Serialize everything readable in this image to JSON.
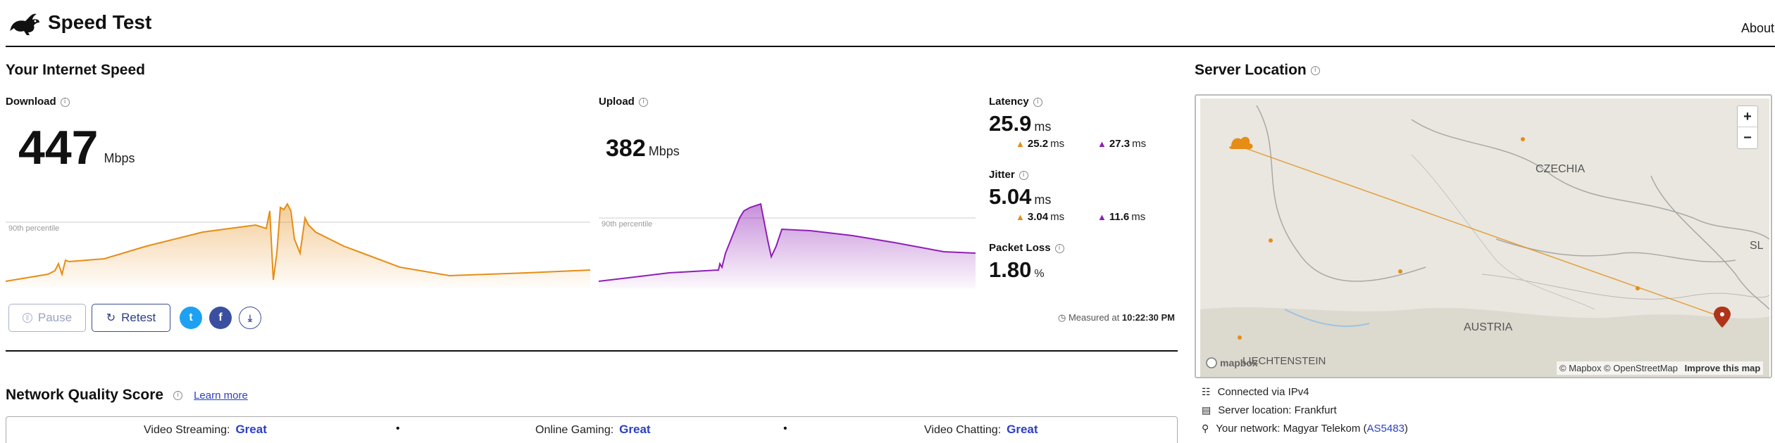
{
  "header": {
    "title": "Speed Test",
    "about": "About"
  },
  "speed": {
    "title": "Your Internet Speed",
    "download": {
      "label": "Download",
      "value": "447",
      "unit": "Mbps",
      "percentile_label": "90th percentile"
    },
    "upload": {
      "label": "Upload",
      "value": "382",
      "unit": "Mbps",
      "percentile_label": "90th percentile"
    },
    "latency": {
      "label": "Latency",
      "value": "25.9",
      "unit": "ms",
      "down": "25.2",
      "up": "27.3",
      "sub_unit": "ms"
    },
    "jitter": {
      "label": "Jitter",
      "value": "5.04",
      "unit": "ms",
      "down": "3.04",
      "up": "11.6",
      "sub_unit": "ms"
    },
    "packet_loss": {
      "label": "Packet Loss",
      "value": "1.80",
      "unit": "%"
    },
    "buttons": {
      "pause": "Pause",
      "retest": "Retest"
    },
    "measured_prefix": "Measured at",
    "measured_time": "10:22:30 PM"
  },
  "quality": {
    "title": "Network Quality Score",
    "learn_more": "Learn more",
    "items": [
      {
        "label": "Video Streaming:",
        "value": "Great"
      },
      {
        "label": "Online Gaming:",
        "value": "Great"
      },
      {
        "label": "Video Chatting:",
        "value": "Great"
      }
    ]
  },
  "server": {
    "title": "Server Location",
    "map_labels": {
      "czechia": "CZECHIA",
      "austria": "AUSTRIA",
      "liechtenstein": "LIECHTENSTEIN",
      "sl": "SL"
    },
    "attribution": "© Mapbox © OpenStreetMap",
    "improve": "Improve this map",
    "mapbox_logo": "mapbox",
    "connected": "Connected via IPv4",
    "location": "Server location: Frankfurt",
    "network_prefix": "Your network: Magyar Telekom (",
    "network_as": "AS5483",
    "network_suffix": ")"
  },
  "colors": {
    "download": "#e58d17",
    "upload": "#8f1fb5",
    "accent": "#2b3fc5"
  },
  "icons": [
    "rabbit-logo-icon",
    "info-icon",
    "pause-icon",
    "retest-icon",
    "twitter-icon",
    "facebook-icon",
    "download-icon",
    "clock-icon",
    "network-icon",
    "server-icon",
    "pin-icon"
  ]
}
